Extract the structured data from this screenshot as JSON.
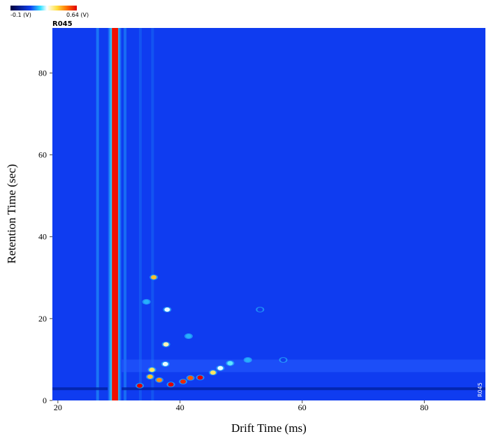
{
  "chart_data": {
    "type": "heatmap",
    "sample": "R045",
    "x_label": "Drift Time (ms)",
    "y_label": "Retention Time (sec)",
    "xlim": [
      19.1,
      90
    ],
    "ylim": [
      0,
      91
    ],
    "xticks": [
      20,
      40,
      60,
      80
    ],
    "yticks": [
      0,
      20,
      40,
      60,
      80
    ],
    "colorbar": {
      "ticks": [
        {
          "value": -0.1,
          "label": "-0.1 (V)"
        },
        {
          "value": 0.64,
          "label": "0.64 (V)"
        }
      ]
    },
    "reactant_ion_peak": 29.3,
    "peaks": {
      "x": [
        35.7,
        37.9,
        37.7,
        37.6,
        35.4,
        35.1,
        36.6,
        33.4,
        38.5,
        40.5,
        41.7,
        43.3,
        45.4,
        46.6,
        48.2,
        51.1,
        41.4,
        34.5,
        53.1,
        56.9
      ],
      "y": [
        30.1,
        22.2,
        13.7,
        8.9,
        7.5,
        5.8,
        5.0,
        3.6,
        3.9,
        4.6,
        5.5,
        5.6,
        6.8,
        7.9,
        9.1,
        9.9,
        15.7,
        24.1,
        22.2,
        9.9
      ],
      "values": [
        0.45,
        0.3,
        0.35,
        0.3,
        0.4,
        0.45,
        0.5,
        0.64,
        0.64,
        0.6,
        0.55,
        0.64,
        0.4,
        0.3,
        0.25,
        0.2,
        0.2,
        0.2,
        0.12,
        0.12
      ]
    }
  }
}
